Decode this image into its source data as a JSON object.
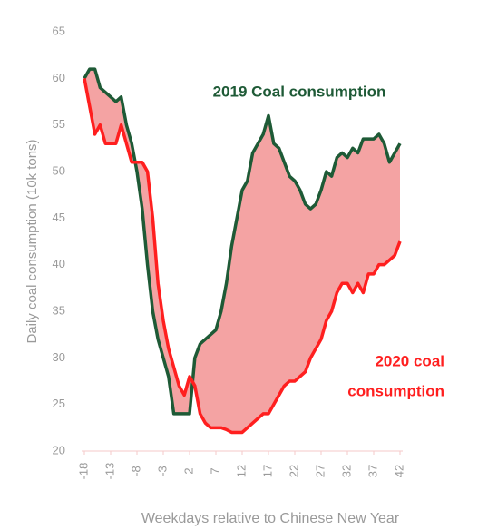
{
  "chart_data": {
    "type": "line",
    "x_label": "Weekdays relative to Chinese New Year",
    "y_label": "Daily coal consumption (10k tons)",
    "x": [
      -18,
      -17,
      -16,
      -15,
      -14,
      -13,
      -12,
      -11,
      -10,
      -9,
      -8,
      -7,
      -6,
      -5,
      -4,
      -3,
      -2,
      -1,
      0,
      1,
      2,
      3,
      4,
      5,
      6,
      7,
      8,
      9,
      10,
      11,
      12,
      13,
      14,
      15,
      16,
      17,
      18,
      19,
      20,
      21,
      22,
      23,
      24,
      25,
      26,
      27,
      28,
      29,
      30,
      31,
      32,
      33,
      34,
      35,
      36,
      37,
      38,
      39,
      40,
      41,
      42
    ],
    "series": [
      {
        "name": "2019 Coal consumption",
        "color": "#1e5a36",
        "values": [
          60,
          61,
          61,
          59,
          58.5,
          58,
          57.5,
          58,
          55,
          53,
          50,
          46,
          40,
          35,
          32,
          30,
          28,
          24,
          24,
          24,
          24,
          30,
          31.5,
          32,
          32.5,
          33,
          35,
          38,
          42,
          45,
          48,
          49,
          52,
          53,
          54,
          56,
          53,
          52.5,
          51,
          49.5,
          49,
          48,
          46.5,
          46,
          46.5,
          48,
          50,
          49.5,
          51.5,
          52,
          51.5,
          52.5,
          52,
          53.5,
          53.5,
          53.5,
          54,
          53,
          51,
          52,
          53
        ]
      },
      {
        "name": "2020 coal consumption",
        "color": "#ff1f1f",
        "values": [
          60,
          57,
          54,
          55,
          53,
          53,
          53,
          55,
          53,
          51,
          51,
          51,
          50,
          45,
          38,
          34,
          31,
          29,
          27,
          26,
          28,
          27,
          24,
          23,
          22.5,
          22.5,
          22.5,
          22.3,
          22,
          22,
          22,
          22.5,
          23,
          23.5,
          24,
          24,
          25,
          26,
          27,
          27.5,
          27.5,
          28,
          28.5,
          30,
          31,
          32,
          34,
          35,
          37,
          38,
          38,
          37,
          38,
          37,
          39,
          39,
          40,
          40,
          40.5,
          41,
          42.5
        ]
      }
    ],
    "annotations": [
      {
        "lines": [
          "2019 Coal consumption"
        ],
        "color": "#1e5a36"
      },
      {
        "lines": [
          "2020 coal",
          "consumption"
        ],
        "color": "#ff1f1f"
      }
    ],
    "fill_between_color": "#f4a3a3",
    "xlim": [
      -18,
      42
    ],
    "xticks": [
      -18,
      -13,
      -8,
      -3,
      2,
      7,
      12,
      17,
      22,
      27,
      32,
      37,
      42
    ],
    "ylim": [
      20,
      65
    ],
    "yticks": [
      20,
      25,
      30,
      35,
      40,
      45,
      50,
      55,
      60,
      65
    ],
    "grid": false
  }
}
